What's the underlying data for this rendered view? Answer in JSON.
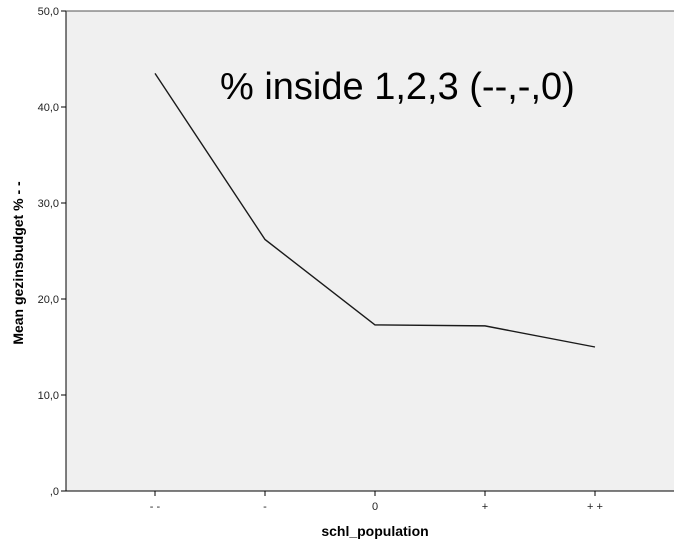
{
  "chart_data": {
    "type": "line",
    "title": "",
    "annotation": "% inside 1,2,3 (--,-,0)",
    "xlabel": "schl_population",
    "ylabel": "Mean gezinsbudget % - -",
    "categories": [
      "- -",
      "-",
      "0",
      "+",
      "+ +"
    ],
    "series": [
      {
        "values": [
          43.5,
          26.2,
          17.3,
          17.2,
          15.0
        ]
      }
    ],
    "ylim": [
      0,
      50
    ],
    "yticks": [
      0,
      10,
      20,
      30,
      40,
      50
    ],
    "ytick_labels": [
      ",0",
      "10,0",
      "20,0",
      "30,0",
      "40,0",
      "50,0"
    ],
    "grid": false,
    "legend": "none",
    "colors": {
      "plot_background": "#f0f0f0",
      "line": "#1a1a1a",
      "axis": "#000000"
    }
  }
}
